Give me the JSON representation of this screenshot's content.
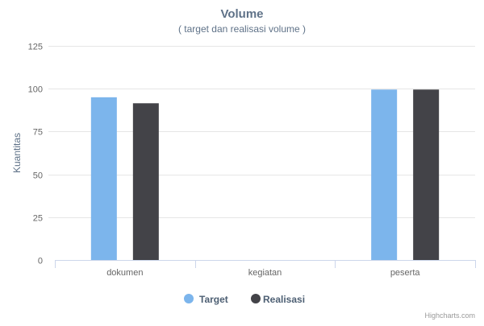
{
  "chart_data": {
    "type": "bar",
    "title": "Volume",
    "subtitle": "( target dan realisasi volume )",
    "xlabel": "",
    "ylabel": "Kuantitas",
    "categories": [
      "dokumen",
      "kegiatan",
      "peserta"
    ],
    "series": [
      {
        "name": "Target",
        "values": [
          95,
          0,
          99.5
        ],
        "color": "#7cb5ec"
      },
      {
        "name": "Realisasi",
        "values": [
          91.5,
          0,
          99.5
        ],
        "color": "#434348"
      }
    ],
    "ylim": [
      0,
      125
    ],
    "yticks": [
      0,
      25,
      50,
      75,
      100,
      125
    ],
    "grid": true,
    "legend_position": "bottom-center",
    "credits": "Highcharts.com"
  }
}
